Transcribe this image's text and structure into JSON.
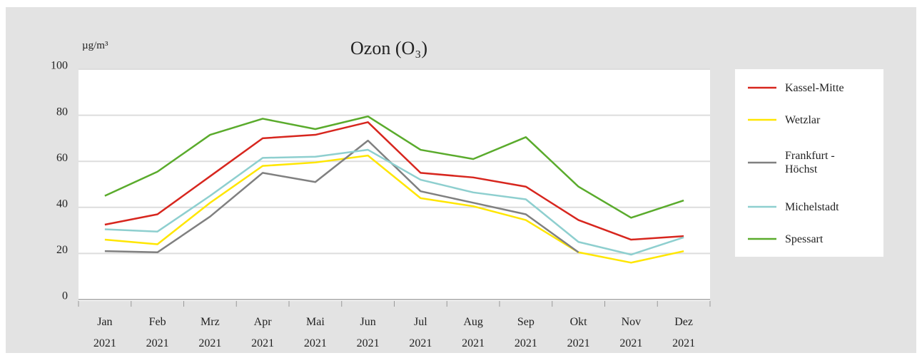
{
  "chart_data": {
    "type": "line",
    "title": "Ozon (O₃)",
    "y_label": "µg/m³",
    "categories": [
      [
        "Jan",
        "2021"
      ],
      [
        "Feb",
        "2021"
      ],
      [
        "Mrz",
        "2021"
      ],
      [
        "Apr",
        "2021"
      ],
      [
        "Mai",
        "2021"
      ],
      [
        "Jun",
        "2021"
      ],
      [
        "Jul",
        "2021"
      ],
      [
        "Aug",
        "2021"
      ],
      [
        "Sep",
        "2021"
      ],
      [
        "Okt",
        "2021"
      ],
      [
        "Nov",
        "2021"
      ],
      [
        "Dez",
        "2021"
      ]
    ],
    "series": [
      {
        "name": "Kassel-Mitte",
        "color": "#d7261e",
        "values": [
          32.5,
          37,
          53.5,
          70,
          71.5,
          77,
          55,
          53,
          49,
          34.5,
          26,
          27.5
        ]
      },
      {
        "name": "Wetzlar",
        "color": "#ffe600",
        "values": [
          26,
          24,
          42,
          58,
          59.5,
          62.5,
          44,
          40.5,
          34.5,
          20.5,
          16,
          21
        ]
      },
      {
        "name": "Frankfurt - Höchst",
        "color": "#808080",
        "values": [
          21,
          20.5,
          36,
          55,
          51,
          69,
          47,
          42,
          37,
          20.5,
          null,
          null
        ]
      },
      {
        "name": "Michelstadt",
        "color": "#8ecfcf",
        "values": [
          30.5,
          29.5,
          45,
          61.5,
          62,
          65,
          52,
          46.5,
          43.5,
          25,
          19.5,
          27
        ]
      },
      {
        "name": "Spessart",
        "color": "#5aab2c",
        "values": [
          45,
          55.5,
          71.5,
          78.5,
          74,
          79.5,
          65,
          61,
          70.5,
          49,
          35.5,
          43
        ]
      }
    ],
    "ylim": [
      0,
      100
    ],
    "yticks": [
      0,
      20,
      40,
      60,
      80,
      100
    ],
    "grid": true,
    "legend": "right"
  }
}
